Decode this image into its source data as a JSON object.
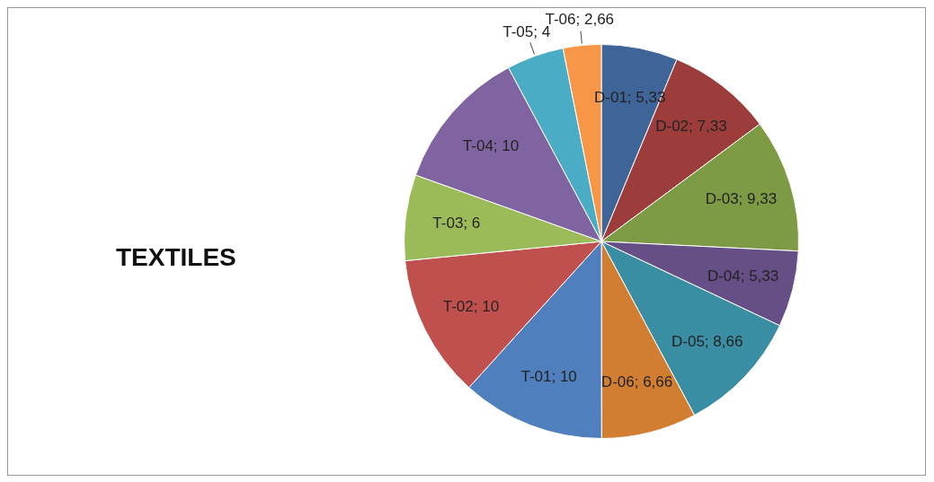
{
  "chart_data": {
    "type": "pie",
    "title": "TEXTILES",
    "categories": [
      "D-01",
      "D-02",
      "D-03",
      "D-04",
      "D-05",
      "D-06",
      "T-01",
      "T-02",
      "T-03",
      "T-04",
      "T-05",
      "T-06"
    ],
    "values": [
      5.33,
      7.33,
      9.33,
      5.33,
      8.66,
      6.66,
      10,
      10,
      6,
      10,
      4,
      2.66
    ],
    "value_labels": [
      "5,33",
      "7,33",
      "9,33",
      "5,33",
      "8,66",
      "6,66",
      "10",
      "10",
      "6",
      "10",
      "4",
      "2,66"
    ],
    "colors": [
      "#3f6598",
      "#9c3d3b",
      "#7d9a45",
      "#664f86",
      "#3a8ea4",
      "#d17e32",
      "#4f7fbd",
      "#c0504d",
      "#9bbb59",
      "#8064a2",
      "#4bacc6",
      "#f79646"
    ],
    "legend": false
  }
}
